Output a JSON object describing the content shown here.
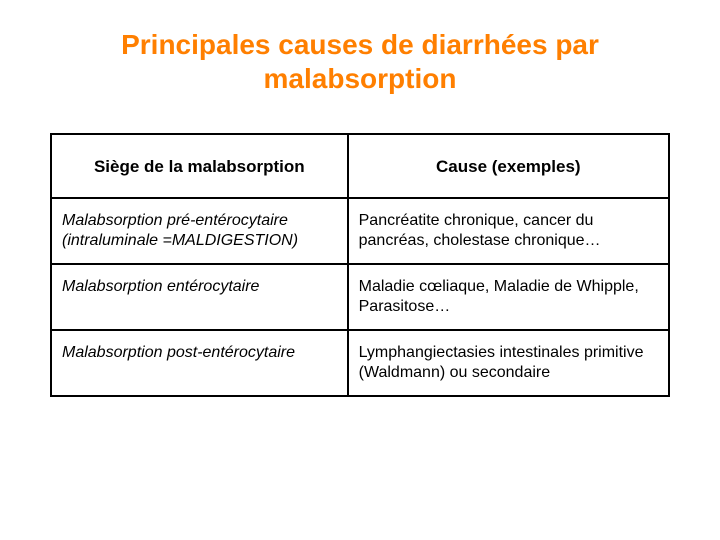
{
  "title": "Principales causes de diarrhées par malabsorption",
  "table": {
    "columns": [
      "Siège de la malabsorption",
      "Cause (exemples)"
    ],
    "rows": [
      [
        "Malabsorption pré-entérocytaire (intraluminale =MALDIGESTION)",
        "Pancréatite chronique, cancer du pancréas, cholestase chronique…"
      ],
      [
        "Malabsorption entérocytaire",
        "Maladie cœliaque, Maladie de Whipple, Parasitose…"
      ],
      [
        "Malabsorption post-entérocytaire",
        "Lymphangiectasies intestinales primitive (Waldmann)\nou secondaire"
      ]
    ]
  }
}
